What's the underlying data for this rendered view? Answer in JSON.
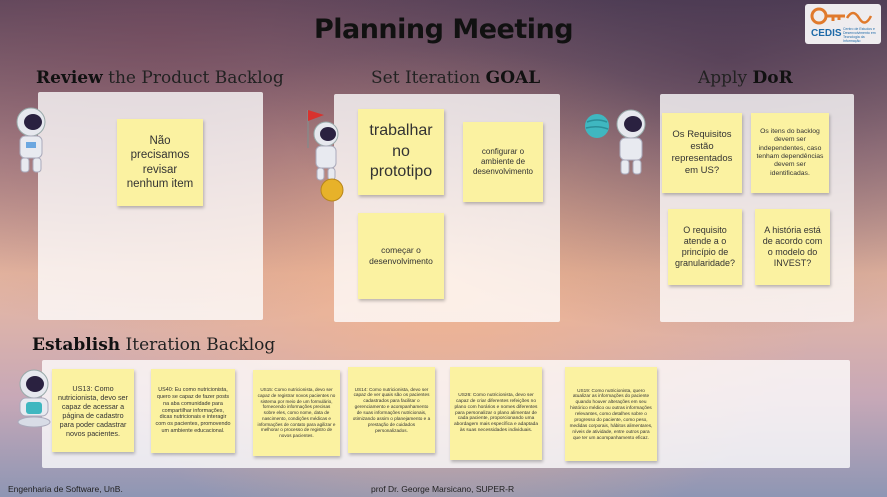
{
  "title": "Planning Meeting",
  "logo": {
    "name": "CEDIS",
    "subtitle": "Centro de Estudos e Desenvolvimento em Tecnologia da Informação"
  },
  "sections": {
    "review": {
      "bold": "Review",
      "rest": " the Product Backlog"
    },
    "goal": {
      "lead": "Set Iteration ",
      "bold": "GOAL"
    },
    "dor": {
      "lead": "Apply ",
      "bold": "DoR"
    },
    "backlog": {
      "bold": "Establish",
      "rest": " Iteration Backlog"
    }
  },
  "review_notes": [
    {
      "text": "Não precisamos revisar nenhum item"
    }
  ],
  "goal_notes": [
    {
      "text": "trabalhar no prototipo"
    },
    {
      "text": "configurar o ambiente de desenvolvimento"
    },
    {
      "text": "começar o desenvolvimento"
    }
  ],
  "dor_notes": [
    {
      "text": "Os Requisitos estão representados em US?"
    },
    {
      "text": "Os itens do backlog devem ser independentes, caso tenham dependências devem ser identificadas."
    },
    {
      "text": "O requisito atende a o princípio de granularidade?"
    },
    {
      "text": "A história está de acordo com o modelo do INVEST?"
    }
  ],
  "backlog_notes": [
    {
      "text": "US13: Como nutricionista, devo ser capaz de acessar a página de cadastro para poder cadastrar novos pacientes."
    },
    {
      "text": "US40: Eu como nutricionista, quero se capaz de fazer posts na aba comunidade para compartilhar informações, dicas nutricionais e interagir com os pacientes, promovendo um ambiente educacional."
    },
    {
      "text": "US15: Como nutricionista, devo ser capaz de registrar novos pacientes no sistema por meio de um formulário, fornecendo informações precisas sobre eles, como nome, data de nascimento, condições médicas e informações de contato para agilizar e melhorar o processo de registro de novos pacientes."
    },
    {
      "text": "US14: Como nutricionista, devo ser capaz de ver quais são os pacientes cadastrados para facilitar o gerenciamento e acompanhamento de suas informações nutricionais, otimizando assim o planejamento e a prestação de cuidados personalizados."
    },
    {
      "text": "US26: Como nutricionista, devo ser capaz de criar diferentes refeições no plano com horários e nomes diferentes para personalizar o plano alimentar de cada paciente, proporcionando uma abordagem mais específica e adaptada às suas necessidades individuais."
    },
    {
      "text": "US19: Como nutricionista, quero atualizar as informações do paciente quando houver alterações em seu histórico médico ou outras informações relevantes, como detalhes sobre o progresso do paciente, como peso, medidas corporais, hábitos alimentares, níveis de atividade, entre outros para que ter um acompanhamento eficaz."
    }
  ],
  "footer": {
    "left": "Engenharia de Software, UnB.",
    "center": "prof Dr. George Marsicano, SUPER-R"
  }
}
